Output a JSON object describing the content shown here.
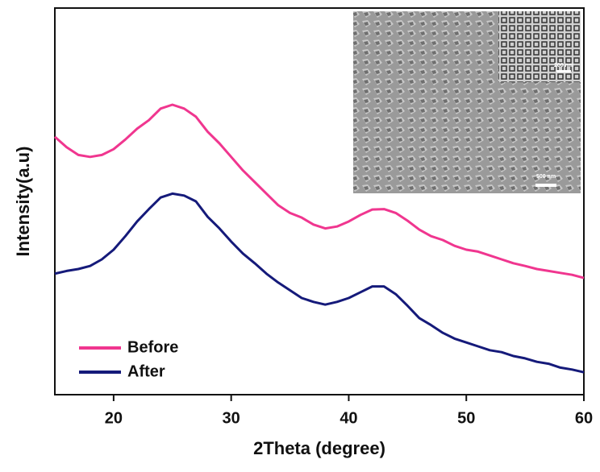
{
  "chart_data": {
    "type": "line",
    "x_label": "2Theta (degree)",
    "y_label": "Intensity(a.u)",
    "x": [
      15,
      16,
      17,
      18,
      19,
      20,
      21,
      22,
      23,
      24,
      25,
      26,
      27,
      28,
      29,
      30,
      31,
      32,
      33,
      34,
      35,
      36,
      37,
      38,
      39,
      40,
      41,
      42,
      43,
      44,
      45,
      46,
      47,
      48,
      49,
      50,
      51,
      52,
      53,
      54,
      55,
      56,
      57,
      58,
      59,
      60
    ],
    "series": [
      {
        "name": "Before",
        "color": "#f0368f",
        "values": [
          66.7,
          64,
          62,
          61.5,
          62,
          63.5,
          66,
          68.8,
          71,
          74,
          75,
          74,
          71.9,
          68,
          65,
          61.5,
          58,
          55,
          52,
          49,
          47,
          45.8,
          44,
          43,
          43.5,
          44.8,
          46.5,
          47.9,
          48,
          47,
          45,
          42.7,
          41,
          40,
          38.5,
          37.5,
          37,
          36,
          35,
          34,
          33.3,
          32.5,
          32,
          31.5,
          31,
          30.2
        ]
      },
      {
        "name": "After",
        "color": "#151a7a",
        "values": [
          31.3,
          32,
          32.5,
          33.3,
          35,
          37.5,
          41,
          44.8,
          48,
          51,
          52,
          51.5,
          50,
          46,
          43,
          39.6,
          36.5,
          34,
          31.3,
          29,
          27,
          25,
          24,
          23.3,
          24,
          25,
          26.5,
          28,
          28,
          26,
          23,
          19.8,
          18,
          16,
          14.5,
          13.5,
          12.5,
          11.5,
          11,
          10,
          9.4,
          8.5,
          8,
          7,
          6.5,
          5.8
        ]
      }
    ],
    "xlim": [
      15,
      60
    ],
    "xticks": [
      20,
      30,
      40,
      50,
      60
    ],
    "ylim": [
      0,
      100
    ],
    "legend": "lower-left",
    "inset_labels": [
      "500 nm",
      "200 nm"
    ]
  }
}
